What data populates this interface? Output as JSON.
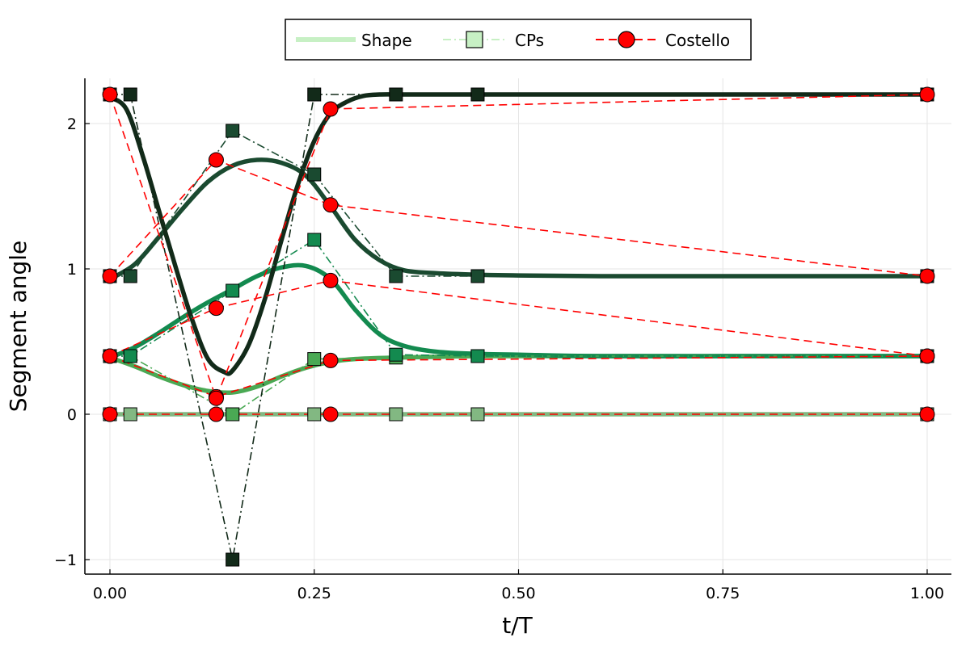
{
  "chart_data": {
    "type": "line",
    "title": "",
    "xlabel": "t/T",
    "ylabel": "Segment angle",
    "xlim": [
      -0.03,
      1.03
    ],
    "ylim": [
      -1.1,
      2.3
    ],
    "xticks": [
      0,
      0.25,
      0.5,
      0.75,
      1.0
    ],
    "xtick_labels": [
      "0.00",
      "0.25",
      "0.50",
      "0.75",
      "1.00"
    ],
    "yticks": [
      -1,
      0,
      1,
      2
    ],
    "ytick_labels": [
      "−1",
      "0",
      "1",
      "2"
    ],
    "grid": true,
    "legend": {
      "position": "top-center-outside",
      "entries": [
        {
          "label": "Shape",
          "color": "#c7f0c4",
          "style": "solid-thick"
        },
        {
          "label": "CPs",
          "color": "#c7f0c4",
          "style": "dashdot-square"
        },
        {
          "label": "Costello",
          "color": "#ff0000",
          "style": "dashed-circle"
        }
      ]
    },
    "colors": {
      "costello": "#ff0000",
      "shape_seg1": "#82b882",
      "shape_seg2": "#4aa954",
      "shape_seg3": "#138a4f",
      "shape_seg4": "#1a4a30",
      "shape_seg5": "#122a19"
    },
    "shape_series": [
      {
        "segment": 1,
        "color": "#82b882",
        "x": [
          0,
          1.0
        ],
        "y": [
          0,
          0
        ]
      },
      {
        "segment": 2,
        "color": "#4aa954",
        "x": [
          0,
          0.03,
          0.06,
          0.09,
          0.12,
          0.15,
          0.18,
          0.21,
          0.24,
          0.27,
          0.3,
          0.35,
          0.4,
          0.45,
          0.6,
          0.8,
          1.0
        ],
        "y": [
          0.39,
          0.33,
          0.26,
          0.2,
          0.16,
          0.15,
          0.19,
          0.26,
          0.32,
          0.36,
          0.38,
          0.39,
          0.395,
          0.4,
          0.4,
          0.4,
          0.4
        ]
      },
      {
        "segment": 3,
        "color": "#138a4f",
        "x": [
          0,
          0.03,
          0.06,
          0.09,
          0.12,
          0.15,
          0.18,
          0.21,
          0.24,
          0.27,
          0.3,
          0.33,
          0.36,
          0.4,
          0.45,
          0.5,
          0.6,
          0.8,
          1.0
        ],
        "y": [
          0.39,
          0.46,
          0.56,
          0.67,
          0.77,
          0.86,
          0.95,
          1.01,
          1.02,
          0.93,
          0.72,
          0.55,
          0.47,
          0.43,
          0.415,
          0.41,
          0.4,
          0.4,
          0.4
        ]
      },
      {
        "segment": 4,
        "color": "#1a4a30",
        "x": [
          0,
          0.03,
          0.06,
          0.09,
          0.12,
          0.15,
          0.18,
          0.21,
          0.24,
          0.27,
          0.3,
          0.33,
          0.36,
          0.4,
          0.45,
          0.5,
          0.6,
          0.8,
          1.0
        ],
        "y": [
          0.93,
          1.03,
          1.22,
          1.42,
          1.6,
          1.71,
          1.75,
          1.73,
          1.64,
          1.43,
          1.2,
          1.06,
          0.99,
          0.97,
          0.96,
          0.955,
          0.95,
          0.95,
          0.95
        ]
      },
      {
        "segment": 5,
        "color": "#122a19",
        "x": [
          0,
          0.02,
          0.04,
          0.06,
          0.08,
          0.1,
          0.12,
          0.14,
          0.15,
          0.17,
          0.19,
          0.21,
          0.23,
          0.25,
          0.27,
          0.29,
          0.31,
          0.33,
          0.36,
          0.4,
          0.45,
          0.6,
          0.8,
          1.0
        ],
        "y": [
          2.18,
          2.1,
          1.78,
          1.4,
          1.02,
          0.66,
          0.38,
          0.29,
          0.3,
          0.48,
          0.8,
          1.2,
          1.58,
          1.88,
          2.07,
          2.15,
          2.19,
          2.2,
          2.2,
          2.2,
          2.2,
          2.2,
          2.2,
          2.2
        ]
      }
    ],
    "cps_series": [
      {
        "segment": 1,
        "color": "#82b882",
        "x": [
          0,
          0.025,
          0.15,
          0.25,
          0.35,
          0.45,
          1.0
        ],
        "y": [
          0,
          0,
          0,
          0,
          0,
          0,
          0
        ]
      },
      {
        "segment": 2,
        "color": "#4aa954",
        "x": [
          0,
          0.025,
          0.15,
          0.25,
          0.35,
          0.45,
          1.0
        ],
        "y": [
          0.4,
          0.4,
          0.0,
          0.38,
          0.39,
          0.4,
          0.4
        ]
      },
      {
        "segment": 3,
        "color": "#138a4f",
        "x": [
          0,
          0.025,
          0.15,
          0.25,
          0.35,
          0.45,
          1.0
        ],
        "y": [
          0.4,
          0.4,
          0.85,
          1.2,
          0.41,
          0.4,
          0.4
        ]
      },
      {
        "segment": 4,
        "color": "#1a4a30",
        "x": [
          0,
          0.025,
          0.15,
          0.25,
          0.35,
          0.45,
          1.0
        ],
        "y": [
          0.95,
          0.95,
          1.95,
          1.65,
          0.95,
          0.95,
          0.95
        ]
      },
      {
        "segment": 5,
        "color": "#122a19",
        "x": [
          0,
          0.025,
          0.15,
          0.25,
          0.35,
          0.45,
          1.0
        ],
        "y": [
          2.2,
          2.2,
          -1.0,
          2.2,
          2.2,
          2.2,
          2.2
        ]
      }
    ],
    "costello_series": [
      {
        "segment": 1,
        "x": [
          0,
          0.13,
          0.27,
          1.0
        ],
        "y": [
          0,
          0,
          0,
          0
        ]
      },
      {
        "segment": 2,
        "x": [
          0,
          0.13,
          0.27,
          1.0
        ],
        "y": [
          0.4,
          0.12,
          0.37,
          0.4
        ]
      },
      {
        "segment": 3,
        "x": [
          0,
          0.13,
          0.27,
          1.0
        ],
        "y": [
          0.4,
          0.73,
          0.92,
          0.4
        ]
      },
      {
        "segment": 4,
        "x": [
          0,
          0.13,
          0.27,
          1.0
        ],
        "y": [
          0.95,
          1.75,
          1.44,
          0.95
        ]
      },
      {
        "segment": 5,
        "x": [
          0,
          0.13,
          0.27,
          1.0
        ],
        "y": [
          2.2,
          0.11,
          2.1,
          2.2
        ]
      }
    ]
  }
}
